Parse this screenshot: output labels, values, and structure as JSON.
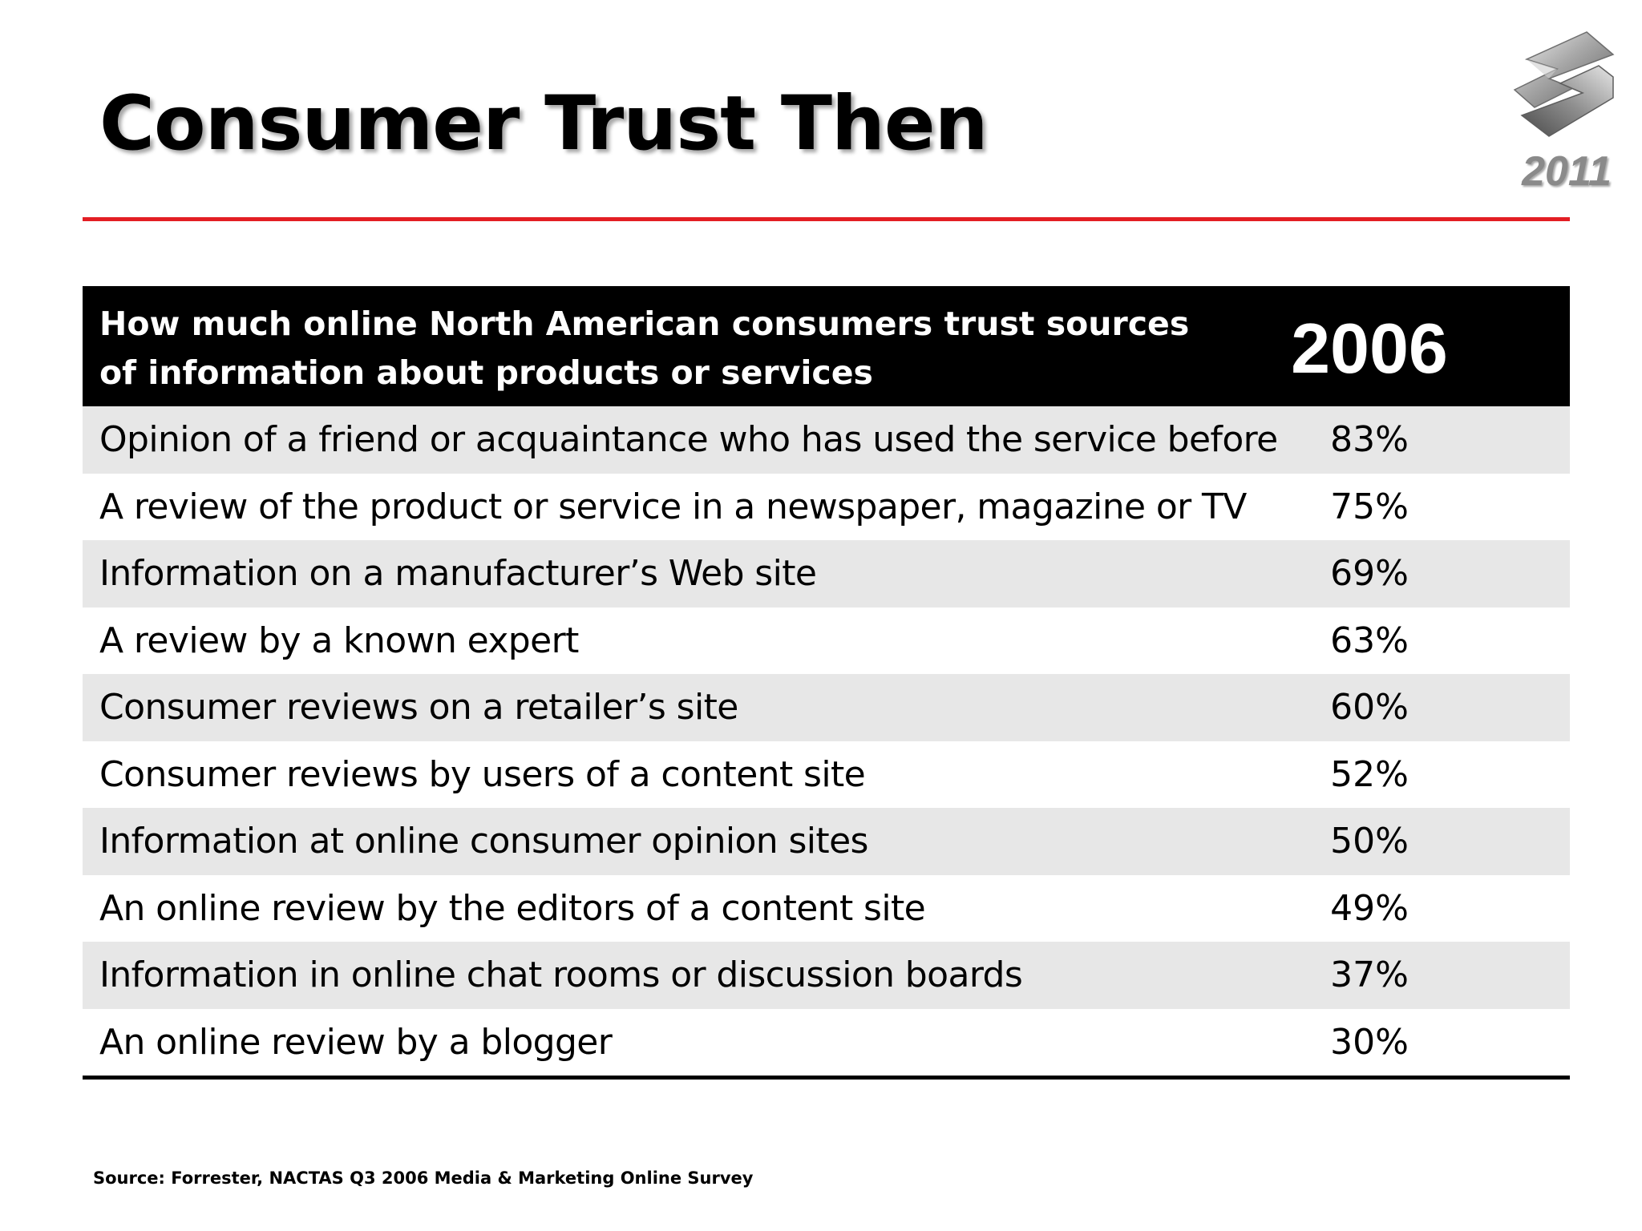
{
  "slide": {
    "title": "Consumer Trust Then"
  },
  "logo": {
    "icon": "suzuki-s-emblem-icon",
    "year": "2011",
    "color": "#8a8a8a"
  },
  "table": {
    "header": {
      "question": "How much online North American consumers trust sources of information about products or services",
      "year": "2006"
    },
    "rows": [
      {
        "source": "Opinion of a friend or acquaintance who has used the service before",
        "value": "83%"
      },
      {
        "source": "A review of the product or service in a newspaper, magazine or TV",
        "value": "75%"
      },
      {
        "source": "Information on a manufacturer’s Web site",
        "value": "69%"
      },
      {
        "source": "A review by a known expert",
        "value": "63%"
      },
      {
        "source": "Consumer reviews on a retailer’s site",
        "value": "60%"
      },
      {
        "source": "Consumer reviews by users of a content site",
        "value": "52%"
      },
      {
        "source": "Information at online consumer opinion sites",
        "value": "50%"
      },
      {
        "source": "An online review by the editors of a content site",
        "value": "49%"
      },
      {
        "source": "Information in online chat rooms or discussion boards",
        "value": "37%"
      },
      {
        "source": "An online review by a blogger",
        "value": "30%"
      }
    ]
  },
  "footer": {
    "source": "Source: Forrester, NACTAS Q3 2006 Media & Marketing Online Survey"
  },
  "colors": {
    "divider": "#e31e24",
    "header_bg": "#000000",
    "row_alt_bg": "#e7e7e7"
  }
}
